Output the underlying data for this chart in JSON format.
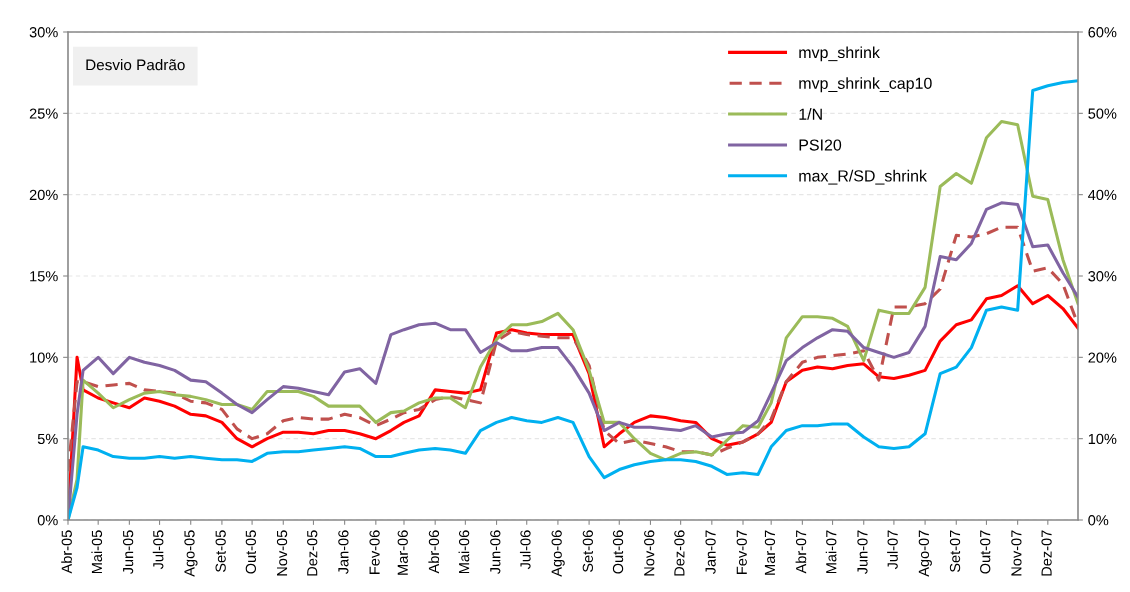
{
  "chart_data": {
    "type": "line",
    "annotations": [
      "Desvio Padrão"
    ],
    "x": [
      "2005-04-01",
      "2005-04-10",
      "2005-04-16",
      "2005-05-01",
      "2005-05-16",
      "2005-06-01",
      "2005-06-16",
      "2005-07-01",
      "2005-07-16",
      "2005-08-01",
      "2005-08-16",
      "2005-09-01",
      "2005-09-16",
      "2005-10-01",
      "2005-10-16",
      "2005-11-01",
      "2005-11-16",
      "2005-12-01",
      "2005-12-16",
      "2006-01-01",
      "2006-01-16",
      "2006-02-01",
      "2006-02-16",
      "2006-03-01",
      "2006-03-16",
      "2006-04-01",
      "2006-04-16",
      "2006-05-01",
      "2006-05-16",
      "2006-06-01",
      "2006-06-16",
      "2006-07-01",
      "2006-07-16",
      "2006-08-01",
      "2006-08-16",
      "2006-09-01",
      "2006-09-16",
      "2006-10-01",
      "2006-10-16",
      "2006-11-01",
      "2006-11-16",
      "2006-12-01",
      "2006-12-16",
      "2007-01-01",
      "2007-01-16",
      "2007-02-01",
      "2007-02-16",
      "2007-03-01",
      "2007-03-16",
      "2007-04-01",
      "2007-04-16",
      "2007-05-01",
      "2007-05-16",
      "2007-06-01",
      "2007-06-16",
      "2007-07-01",
      "2007-07-16",
      "2007-08-01",
      "2007-08-16",
      "2007-09-01",
      "2007-09-16",
      "2007-10-01",
      "2007-10-16",
      "2007-11-01",
      "2007-11-16",
      "2007-12-01",
      "2007-12-16",
      "2007-12-31"
    ],
    "series": [
      {
        "name": "mvp_shrink",
        "color": "#ff0000",
        "line_style": "solid",
        "values": [
          0,
          10.0,
          8.0,
          7.5,
          7.2,
          6.9,
          7.5,
          7.3,
          7.0,
          6.5,
          6.4,
          6.0,
          5.0,
          4.5,
          5.0,
          5.4,
          5.4,
          5.3,
          5.5,
          5.5,
          5.3,
          5.0,
          5.5,
          6.0,
          6.4,
          8.0,
          7.9,
          7.8,
          8.0,
          11.5,
          11.7,
          11.5,
          11.4,
          11.4,
          11.4,
          9.0,
          4.5,
          5.3,
          6.0,
          6.4,
          6.3,
          6.1,
          6.0,
          5.0,
          4.6,
          4.8,
          5.3,
          6.0,
          8.5,
          9.2,
          9.4,
          9.3,
          9.5,
          9.6,
          8.8,
          8.7,
          8.9,
          9.2,
          11.0,
          12.0,
          12.3,
          13.6,
          13.8,
          14.4,
          13.3,
          13.8,
          13.0,
          11.8
        ]
      },
      {
        "name": "mvp_shrink_cap10",
        "color": "#c0504d",
        "line_style": "dashed",
        "values": [
          3.0,
          8.5,
          8.5,
          8.2,
          8.3,
          8.4,
          8.0,
          7.9,
          7.8,
          7.3,
          7.2,
          6.8,
          5.6,
          5.0,
          5.3,
          6.1,
          6.3,
          6.2,
          6.2,
          6.5,
          6.3,
          5.8,
          6.2,
          6.6,
          6.8,
          7.4,
          7.6,
          7.4,
          7.2,
          11.0,
          11.6,
          11.4,
          11.3,
          11.2,
          11.2,
          9.5,
          5.5,
          4.7,
          4.9,
          4.7,
          4.5,
          4.2,
          4.2,
          4.0,
          4.4,
          4.8,
          5.3,
          6.2,
          8.5,
          9.7,
          10.0,
          10.1,
          10.2,
          10.4,
          8.6,
          13.1,
          13.1,
          13.3,
          14.2,
          17.5,
          17.4,
          17.6,
          18.0,
          18.0,
          15.3,
          15.5,
          14.5,
          12.0
        ]
      },
      {
        "name": "1/N",
        "color": "#9bbb59",
        "line_style": "solid",
        "values": [
          0,
          2.5,
          8.6,
          7.8,
          6.9,
          7.4,
          7.8,
          7.9,
          7.7,
          7.6,
          7.4,
          7.1,
          7.1,
          6.8,
          7.9,
          7.9,
          7.9,
          7.6,
          7.0,
          7.0,
          7.0,
          6.0,
          6.6,
          6.7,
          7.2,
          7.5,
          7.5,
          6.9,
          9.4,
          11.1,
          12.0,
          12.0,
          12.2,
          12.7,
          11.7,
          9.2,
          6.0,
          6.0,
          5.0,
          4.1,
          3.7,
          4.1,
          4.2,
          4.0,
          4.9,
          5.8,
          5.7,
          7.2,
          11.2,
          12.5,
          12.5,
          12.4,
          11.9,
          9.8,
          12.9,
          12.7,
          12.7,
          14.3,
          20.5,
          21.3,
          20.7,
          23.5,
          24.5,
          24.3,
          19.9,
          19.7,
          16.0,
          13.3
        ]
      },
      {
        "name": "PSI20",
        "color": "#8064a2",
        "line_style": "solid",
        "values": [
          0,
          6.5,
          9.2,
          10.0,
          9.0,
          10.0,
          9.7,
          9.5,
          9.2,
          8.6,
          8.5,
          7.8,
          7.1,
          6.6,
          7.4,
          8.2,
          8.1,
          7.9,
          7.7,
          9.1,
          9.3,
          8.4,
          11.4,
          11.7,
          12.0,
          12.1,
          11.7,
          11.7,
          10.3,
          10.9,
          10.4,
          10.4,
          10.6,
          10.6,
          9.4,
          7.8,
          5.5,
          6.0,
          5.7,
          5.7,
          5.6,
          5.5,
          5.8,
          5.1,
          5.3,
          5.4,
          6.1,
          7.8,
          9.8,
          10.6,
          11.2,
          11.7,
          11.6,
          10.6,
          10.3,
          10.0,
          10.3,
          11.9,
          16.2,
          16.0,
          17.0,
          19.1,
          19.5,
          19.4,
          16.8,
          16.9,
          15.2,
          13.7
        ]
      },
      {
        "name": "max_R/SD_shrink",
        "color": "#00b0f0",
        "line_style": "solid",
        "values": [
          0,
          2.0,
          4.5,
          4.3,
          3.9,
          3.8,
          3.8,
          3.9,
          3.8,
          3.9,
          3.8,
          3.7,
          3.7,
          3.6,
          4.1,
          4.2,
          4.2,
          4.3,
          4.4,
          4.5,
          4.4,
          3.9,
          3.9,
          4.1,
          4.3,
          4.4,
          4.3,
          4.1,
          5.5,
          6.0,
          6.3,
          6.1,
          6.0,
          6.3,
          6.0,
          3.9,
          2.6,
          3.1,
          3.4,
          3.6,
          3.7,
          3.7,
          3.6,
          3.3,
          2.8,
          2.9,
          2.8,
          4.5,
          5.5,
          5.8,
          5.8,
          5.9,
          5.9,
          5.1,
          4.5,
          4.4,
          4.5,
          5.3,
          9.0,
          9.4,
          10.6,
          12.9,
          13.1,
          12.9,
          26.4,
          26.7,
          26.9,
          27.0
        ]
      }
    ],
    "xlim": [
      "2005-04-01",
      "2007-12-31"
    ],
    "xticks": [
      {
        "value": "2005-04-01",
        "label": "Abr-05"
      },
      {
        "value": "2005-05-01",
        "label": "Mai-05"
      },
      {
        "value": "2005-06-01",
        "label": "Jun-05"
      },
      {
        "value": "2005-07-01",
        "label": "Jul-05"
      },
      {
        "value": "2005-08-01",
        "label": "Ago-05"
      },
      {
        "value": "2005-09-01",
        "label": "Set-05"
      },
      {
        "value": "2005-10-01",
        "label": "Out-05"
      },
      {
        "value": "2005-11-01",
        "label": "Nov-05"
      },
      {
        "value": "2005-12-01",
        "label": "Dez-05"
      },
      {
        "value": "2006-01-01",
        "label": "Jan-06"
      },
      {
        "value": "2006-02-01",
        "label": "Fev-06"
      },
      {
        "value": "2006-03-01",
        "label": "Mar-06"
      },
      {
        "value": "2006-04-01",
        "label": "Abr-06"
      },
      {
        "value": "2006-05-01",
        "label": "Mai-06"
      },
      {
        "value": "2006-06-01",
        "label": "Jun-06"
      },
      {
        "value": "2006-07-01",
        "label": "Jul-06"
      },
      {
        "value": "2006-08-01",
        "label": "Ago-06"
      },
      {
        "value": "2006-09-01",
        "label": "Set-06"
      },
      {
        "value": "2006-10-01",
        "label": "Out-06"
      },
      {
        "value": "2006-11-01",
        "label": "Nov-06"
      },
      {
        "value": "2006-12-01",
        "label": "Dez-06"
      },
      {
        "value": "2007-01-01",
        "label": "Jan-07"
      },
      {
        "value": "2007-02-01",
        "label": "Fev-07"
      },
      {
        "value": "2007-03-01",
        "label": "Mar-07"
      },
      {
        "value": "2007-04-01",
        "label": "Abr-07"
      },
      {
        "value": "2007-05-01",
        "label": "Mai-07"
      },
      {
        "value": "2007-06-01",
        "label": "Jun-07"
      },
      {
        "value": "2007-07-01",
        "label": "Jul-07"
      },
      {
        "value": "2007-08-01",
        "label": "Ago-07"
      },
      {
        "value": "2007-09-01",
        "label": "Set-07"
      },
      {
        "value": "2007-10-01",
        "label": "Out-07"
      },
      {
        "value": "2007-11-01",
        "label": "Nov-07"
      },
      {
        "value": "2007-12-01",
        "label": "Dez-07"
      }
    ],
    "ylim": [
      0,
      30
    ],
    "yticks": [
      {
        "value": 0,
        "label": "0%"
      },
      {
        "value": 5,
        "label": "5%"
      },
      {
        "value": 10,
        "label": "10%"
      },
      {
        "value": 15,
        "label": "15%"
      },
      {
        "value": 20,
        "label": "20%"
      },
      {
        "value": 25,
        "label": "25%"
      },
      {
        "value": 30,
        "label": "30%"
      }
    ],
    "y2lim": [
      0,
      60
    ],
    "y2ticks": [
      {
        "value": 0,
        "label": "0%"
      },
      {
        "value": 10,
        "label": "10%"
      },
      {
        "value": 20,
        "label": "20%"
      },
      {
        "value": 30,
        "label": "30%"
      },
      {
        "value": 40,
        "label": "40%"
      },
      {
        "value": 50,
        "label": "50%"
      },
      {
        "value": 60,
        "label": "60%"
      }
    ],
    "grid": "y",
    "legend": "top right"
  }
}
